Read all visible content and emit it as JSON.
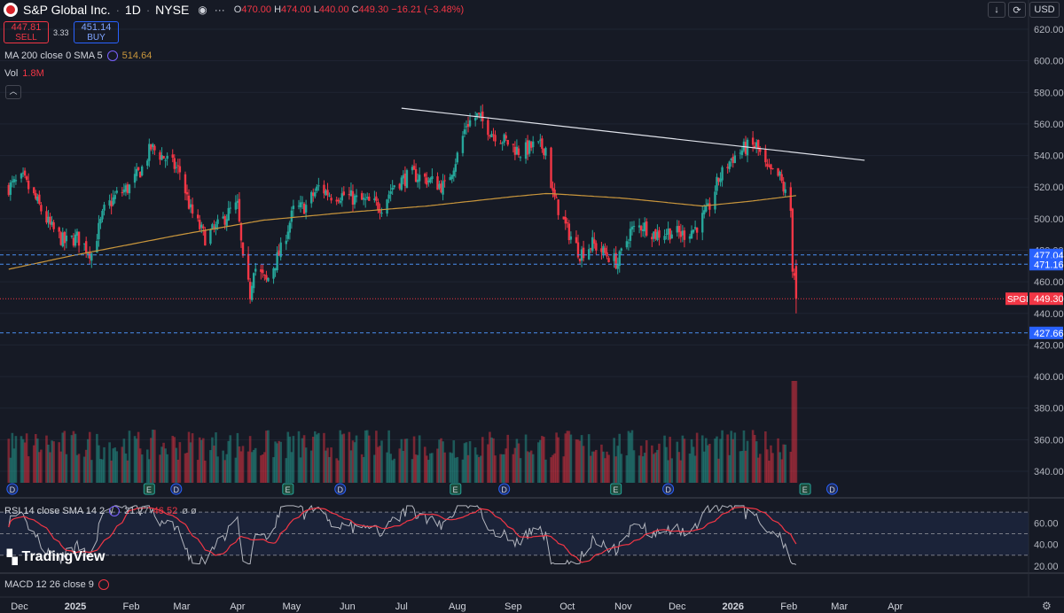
{
  "header": {
    "title": "S&P Global Inc.",
    "interval": "1D",
    "exchange": "NYSE",
    "ohlc": {
      "o_label": "O",
      "o": "470.00",
      "h_label": "H",
      "h": "474.00",
      "l_label": "L",
      "l": "440.00",
      "c_label": "C",
      "c": "449.30",
      "change": "−16.21 (−3.48%)"
    },
    "sell_price": "447.81",
    "sell_label": "SELL",
    "spread": "3.33",
    "buy_price": "451.14",
    "buy_label": "BUY",
    "ma_label": "MA 200 close 0 SMA 5",
    "ma_value": "514.64",
    "vol_label": "Vol",
    "vol_value": "1.8M",
    "currency": "USD",
    "rsi_label": "RSI 14 close SMA 14 2",
    "rsi_value": "21.27",
    "rsi_sma": "46.52",
    "rsi_extra": "ø ø",
    "macd_label": "MACD 12 26 close 9",
    "watermark": "TradingView"
  },
  "colors": {
    "bg": "#161a25",
    "up": "#26a69a",
    "down": "#f23645",
    "ma": "#c9963c",
    "rsi": "#b2b5be",
    "rsi_sma": "#f23645",
    "level": "#4a8ef0",
    "trend": "#e0e3eb"
  },
  "chart_data": {
    "type": "candlestick",
    "price_axis": {
      "ticks": [
        620,
        600,
        580,
        560,
        540,
        520,
        500,
        480,
        460,
        440,
        420,
        400,
        380,
        360,
        340
      ]
    },
    "ylim": [
      325,
      625
    ],
    "time_labels": [
      "Dec",
      "2025",
      "Feb",
      "Mar",
      "Apr",
      "May",
      "Jun",
      "Jul",
      "Aug",
      "Sep",
      "Oct",
      "Nov",
      "Dec",
      "2026",
      "Feb",
      "Mar",
      "Apr"
    ],
    "last_price": {
      "label": "SPGI",
      "value": 449.3
    },
    "levels": [
      477.04,
      471.16,
      427.66
    ],
    "trendline": {
      "from": {
        "date": "2025-07-01",
        "price": 570
      },
      "to": {
        "date": "2026-03-15",
        "price": 537
      }
    },
    "price_anchors": [
      [
        "2024-11-25",
        520
      ],
      [
        "2024-12-03",
        525
      ],
      [
        "2024-12-10",
        512
      ],
      [
        "2024-12-18",
        495
      ],
      [
        "2024-12-26",
        485
      ],
      [
        "2025-01-02",
        488
      ],
      [
        "2025-01-10",
        478
      ],
      [
        "2025-01-17",
        505
      ],
      [
        "2025-01-24",
        515
      ],
      [
        "2025-01-31",
        520
      ],
      [
        "2025-02-07",
        532
      ],
      [
        "2025-02-12",
        545
      ],
      [
        "2025-02-20",
        538
      ],
      [
        "2025-02-28",
        530
      ],
      [
        "2025-03-06",
        505
      ],
      [
        "2025-03-14",
        488
      ],
      [
        "2025-03-21",
        495
      ],
      [
        "2025-03-28",
        505
      ],
      [
        "2025-04-01",
        508
      ],
      [
        "2025-04-04",
        472
      ],
      [
        "2025-04-08",
        452
      ],
      [
        "2025-04-10",
        470
      ],
      [
        "2025-04-17",
        460
      ],
      [
        "2025-04-25",
        480
      ],
      [
        "2025-05-02",
        505
      ],
      [
        "2025-05-09",
        508
      ],
      [
        "2025-05-16",
        520
      ],
      [
        "2025-05-23",
        515
      ],
      [
        "2025-05-30",
        515
      ],
      [
        "2025-06-06",
        512
      ],
      [
        "2025-06-13",
        510
      ],
      [
        "2025-06-20",
        508
      ],
      [
        "2025-06-27",
        522
      ],
      [
        "2025-07-07",
        528
      ],
      [
        "2025-07-15",
        525
      ],
      [
        "2025-07-25",
        520
      ],
      [
        "2025-08-01",
        540
      ],
      [
        "2025-08-06",
        560
      ],
      [
        "2025-08-12",
        565
      ],
      [
        "2025-08-20",
        555
      ],
      [
        "2025-08-29",
        548
      ],
      [
        "2025-09-05",
        542
      ],
      [
        "2025-09-12",
        546
      ],
      [
        "2025-09-19",
        545
      ],
      [
        "2025-09-23",
        515
      ],
      [
        "2025-09-30",
        495
      ],
      [
        "2025-10-08",
        478
      ],
      [
        "2025-10-15",
        484
      ],
      [
        "2025-10-22",
        478
      ],
      [
        "2025-10-29",
        472
      ],
      [
        "2025-11-05",
        492
      ],
      [
        "2025-11-12",
        496
      ],
      [
        "2025-11-19",
        490
      ],
      [
        "2025-11-26",
        492
      ],
      [
        "2025-12-04",
        490
      ],
      [
        "2025-12-11",
        494
      ],
      [
        "2025-12-18",
        505
      ],
      [
        "2025-12-24",
        525
      ],
      [
        "2025-12-31",
        538
      ],
      [
        "2026-01-08",
        545
      ],
      [
        "2026-01-14",
        546
      ],
      [
        "2026-01-20",
        530
      ],
      [
        "2026-01-27",
        526
      ],
      [
        "2026-02-02",
        505
      ],
      [
        "2026-02-03",
        470
      ],
      [
        "2026-02-04",
        465
      ],
      [
        "2026-02-05",
        449.3
      ]
    ],
    "ma200_anchors": [
      [
        "2024-11-25",
        468
      ],
      [
        "2025-01-01",
        477
      ],
      [
        "2025-03-01",
        490
      ],
      [
        "2025-04-15",
        499
      ],
      [
        "2025-06-01",
        504
      ],
      [
        "2025-07-15",
        508
      ],
      [
        "2025-09-01",
        514
      ],
      [
        "2025-09-20",
        516
      ],
      [
        "2025-11-01",
        513
      ],
      [
        "2025-12-15",
        508
      ],
      [
        "2026-01-10",
        511
      ],
      [
        "2026-02-05",
        514.64
      ]
    ],
    "volume": {
      "ticks": []
    },
    "rsi": {
      "levels": [
        70,
        50,
        30
      ],
      "ticks": [
        60,
        40,
        20
      ],
      "last": 21.27,
      "sma_last": 46.52
    },
    "markers": [
      {
        "type": "dividend",
        "label": "D",
        "date": "2024-11-27"
      },
      {
        "type": "dividend",
        "label": "D",
        "date": "2025-02-26"
      },
      {
        "type": "earnings",
        "label": "E",
        "date": "2025-02-11"
      },
      {
        "type": "dividend",
        "label": "D",
        "date": "2025-05-28"
      },
      {
        "type": "earnings",
        "label": "E",
        "date": "2025-04-29"
      },
      {
        "type": "earnings",
        "label": "E",
        "date": "2025-07-31"
      },
      {
        "type": "dividend",
        "label": "D",
        "date": "2025-08-27"
      },
      {
        "type": "earnings",
        "label": "E",
        "date": "2025-10-28"
      },
      {
        "type": "dividend",
        "label": "D",
        "date": "2025-11-26"
      },
      {
        "type": "earnings",
        "label": "E",
        "date": "2026-02-10"
      },
      {
        "type": "dividend",
        "label": "D",
        "date": "2026-02-25"
      }
    ]
  }
}
